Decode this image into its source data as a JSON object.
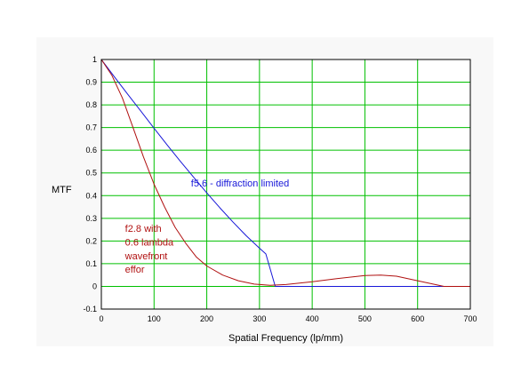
{
  "chart_data": {
    "type": "line",
    "title": "",
    "xlabel": "Spatial Frequency (lp/mm)",
    "ylabel": "MTF",
    "xlim": [
      0,
      700
    ],
    "ylim": [
      -0.1,
      1
    ],
    "x_ticks": [
      0,
      100,
      200,
      300,
      400,
      500,
      600,
      700
    ],
    "y_ticks": [
      -0.1,
      0,
      0.1,
      0.2,
      0.3,
      0.4,
      0.5,
      0.6,
      0.7,
      0.8,
      0.9,
      1
    ],
    "grid": true,
    "colors": {
      "panel": "#f8f8f8",
      "plot_bg": "#ffffff",
      "grid": "#00c000",
      "blue": "#1818d8",
      "red": "#b01010"
    },
    "series": [
      {
        "color": "#1818d8",
        "x": [
          0,
          25,
          50,
          75,
          100,
          125,
          150,
          175,
          200,
          225,
          250,
          275,
          300,
          312,
          330,
          700
        ],
        "y": [
          1.0,
          0.923,
          0.847,
          0.772,
          0.697,
          0.623,
          0.551,
          0.481,
          0.412,
          0.346,
          0.283,
          0.223,
          0.168,
          0.143,
          0.0,
          0.0
        ]
      },
      {
        "color": "#b01010",
        "x": [
          0,
          20,
          40,
          60,
          80,
          100,
          120,
          140,
          160,
          180,
          200,
          230,
          260,
          290,
          320,
          350,
          400,
          450,
          500,
          530,
          560,
          600,
          650,
          700
        ],
        "y": [
          1.0,
          0.93,
          0.83,
          0.7,
          0.57,
          0.45,
          0.35,
          0.26,
          0.19,
          0.13,
          0.09,
          0.05,
          0.025,
          0.01,
          0.005,
          0.008,
          0.02,
          0.035,
          0.048,
          0.05,
          0.045,
          0.025,
          0.0,
          0.0
        ]
      }
    ],
    "annotations": [
      {
        "text": "f5.6 - diffraction limited",
        "x": 170,
        "y": 0.44,
        "color": "#1818d8"
      },
      {
        "text": "f2.8 with",
        "x": 45,
        "y": 0.24,
        "color": "#b01010"
      },
      {
        "text": "0.6 lambda",
        "x": 45,
        "y": 0.18,
        "color": "#b01010"
      },
      {
        "text": "wavefront",
        "x": 45,
        "y": 0.12,
        "color": "#b01010"
      },
      {
        "text": "effor",
        "x": 45,
        "y": 0.06,
        "color": "#b01010"
      }
    ]
  }
}
